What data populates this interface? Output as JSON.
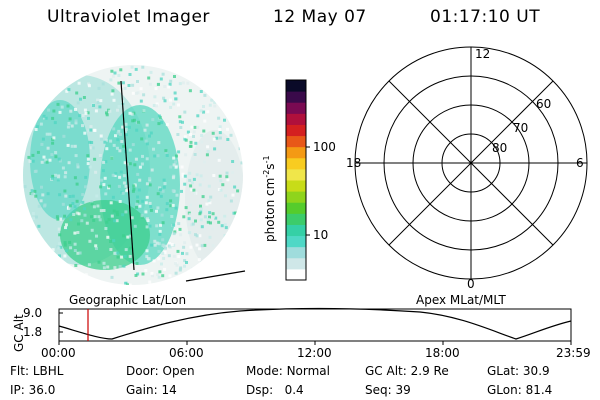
{
  "header": {
    "instrument": "Ultraviolet Imager",
    "date": "12 May 07",
    "time": "01:17:10 UT"
  },
  "colorbar": {
    "axis_label": "photon cm",
    "exponent_1": "-2",
    "s_label": "s",
    "exponent_2": "-1",
    "ticks": [
      "100",
      "10"
    ],
    "colors": [
      "#ffffff",
      "#cfe7e8",
      "#9fdcdc",
      "#4fd8c6",
      "#35d0a6",
      "#3ccc6a",
      "#55cc2c",
      "#8fd41c",
      "#c8dc18",
      "#f0e64a",
      "#f8cc20",
      "#f49a14",
      "#e85818",
      "#d42020",
      "#b0103c",
      "#7a0a52",
      "#3a0a4a",
      "#0a0a28"
    ]
  },
  "left_image": {
    "caption": "Geographic Lat/Lon",
    "colors": {
      "low": "#e6f0ef",
      "mid": "#a8e0dc",
      "high": "#3ed4b4",
      "peak": "#3ccf7c"
    }
  },
  "polar_plot": {
    "caption": "Apex MLat/MLT",
    "mlt_labels": {
      "top": "12",
      "left": "18",
      "right": "6",
      "bottom": "0"
    },
    "lat_labels": [
      "60",
      "70",
      "80"
    ]
  },
  "altitude_plot": {
    "ylabel": "GC Alt",
    "yticks": [
      "9.0",
      "1.8"
    ],
    "xticks": [
      "00:00",
      "06:00",
      "12:00",
      "18:00",
      "23:59"
    ],
    "current_time_color": "#cc0000"
  },
  "info": {
    "filter_label": "Flt:",
    "filter_value": "LBHL",
    "ip_label": "IP:",
    "ip_value": "36.0",
    "door_label": "Door:",
    "door_value": "Open",
    "gain_label": "Gain:",
    "gain_value": "14",
    "mode_label": "Mode:",
    "mode_value": "Normal",
    "dsp_label": "Dsp:",
    "dsp_value": "0.4",
    "gcalt_label": "GC Alt:",
    "gcalt_value": "2.9 Re",
    "seq_label": "Seq:",
    "seq_value": "39",
    "glat_label": "GLat:",
    "glat_value": "30.9",
    "glon_label": "GLon:",
    "glon_value": "81.4"
  }
}
